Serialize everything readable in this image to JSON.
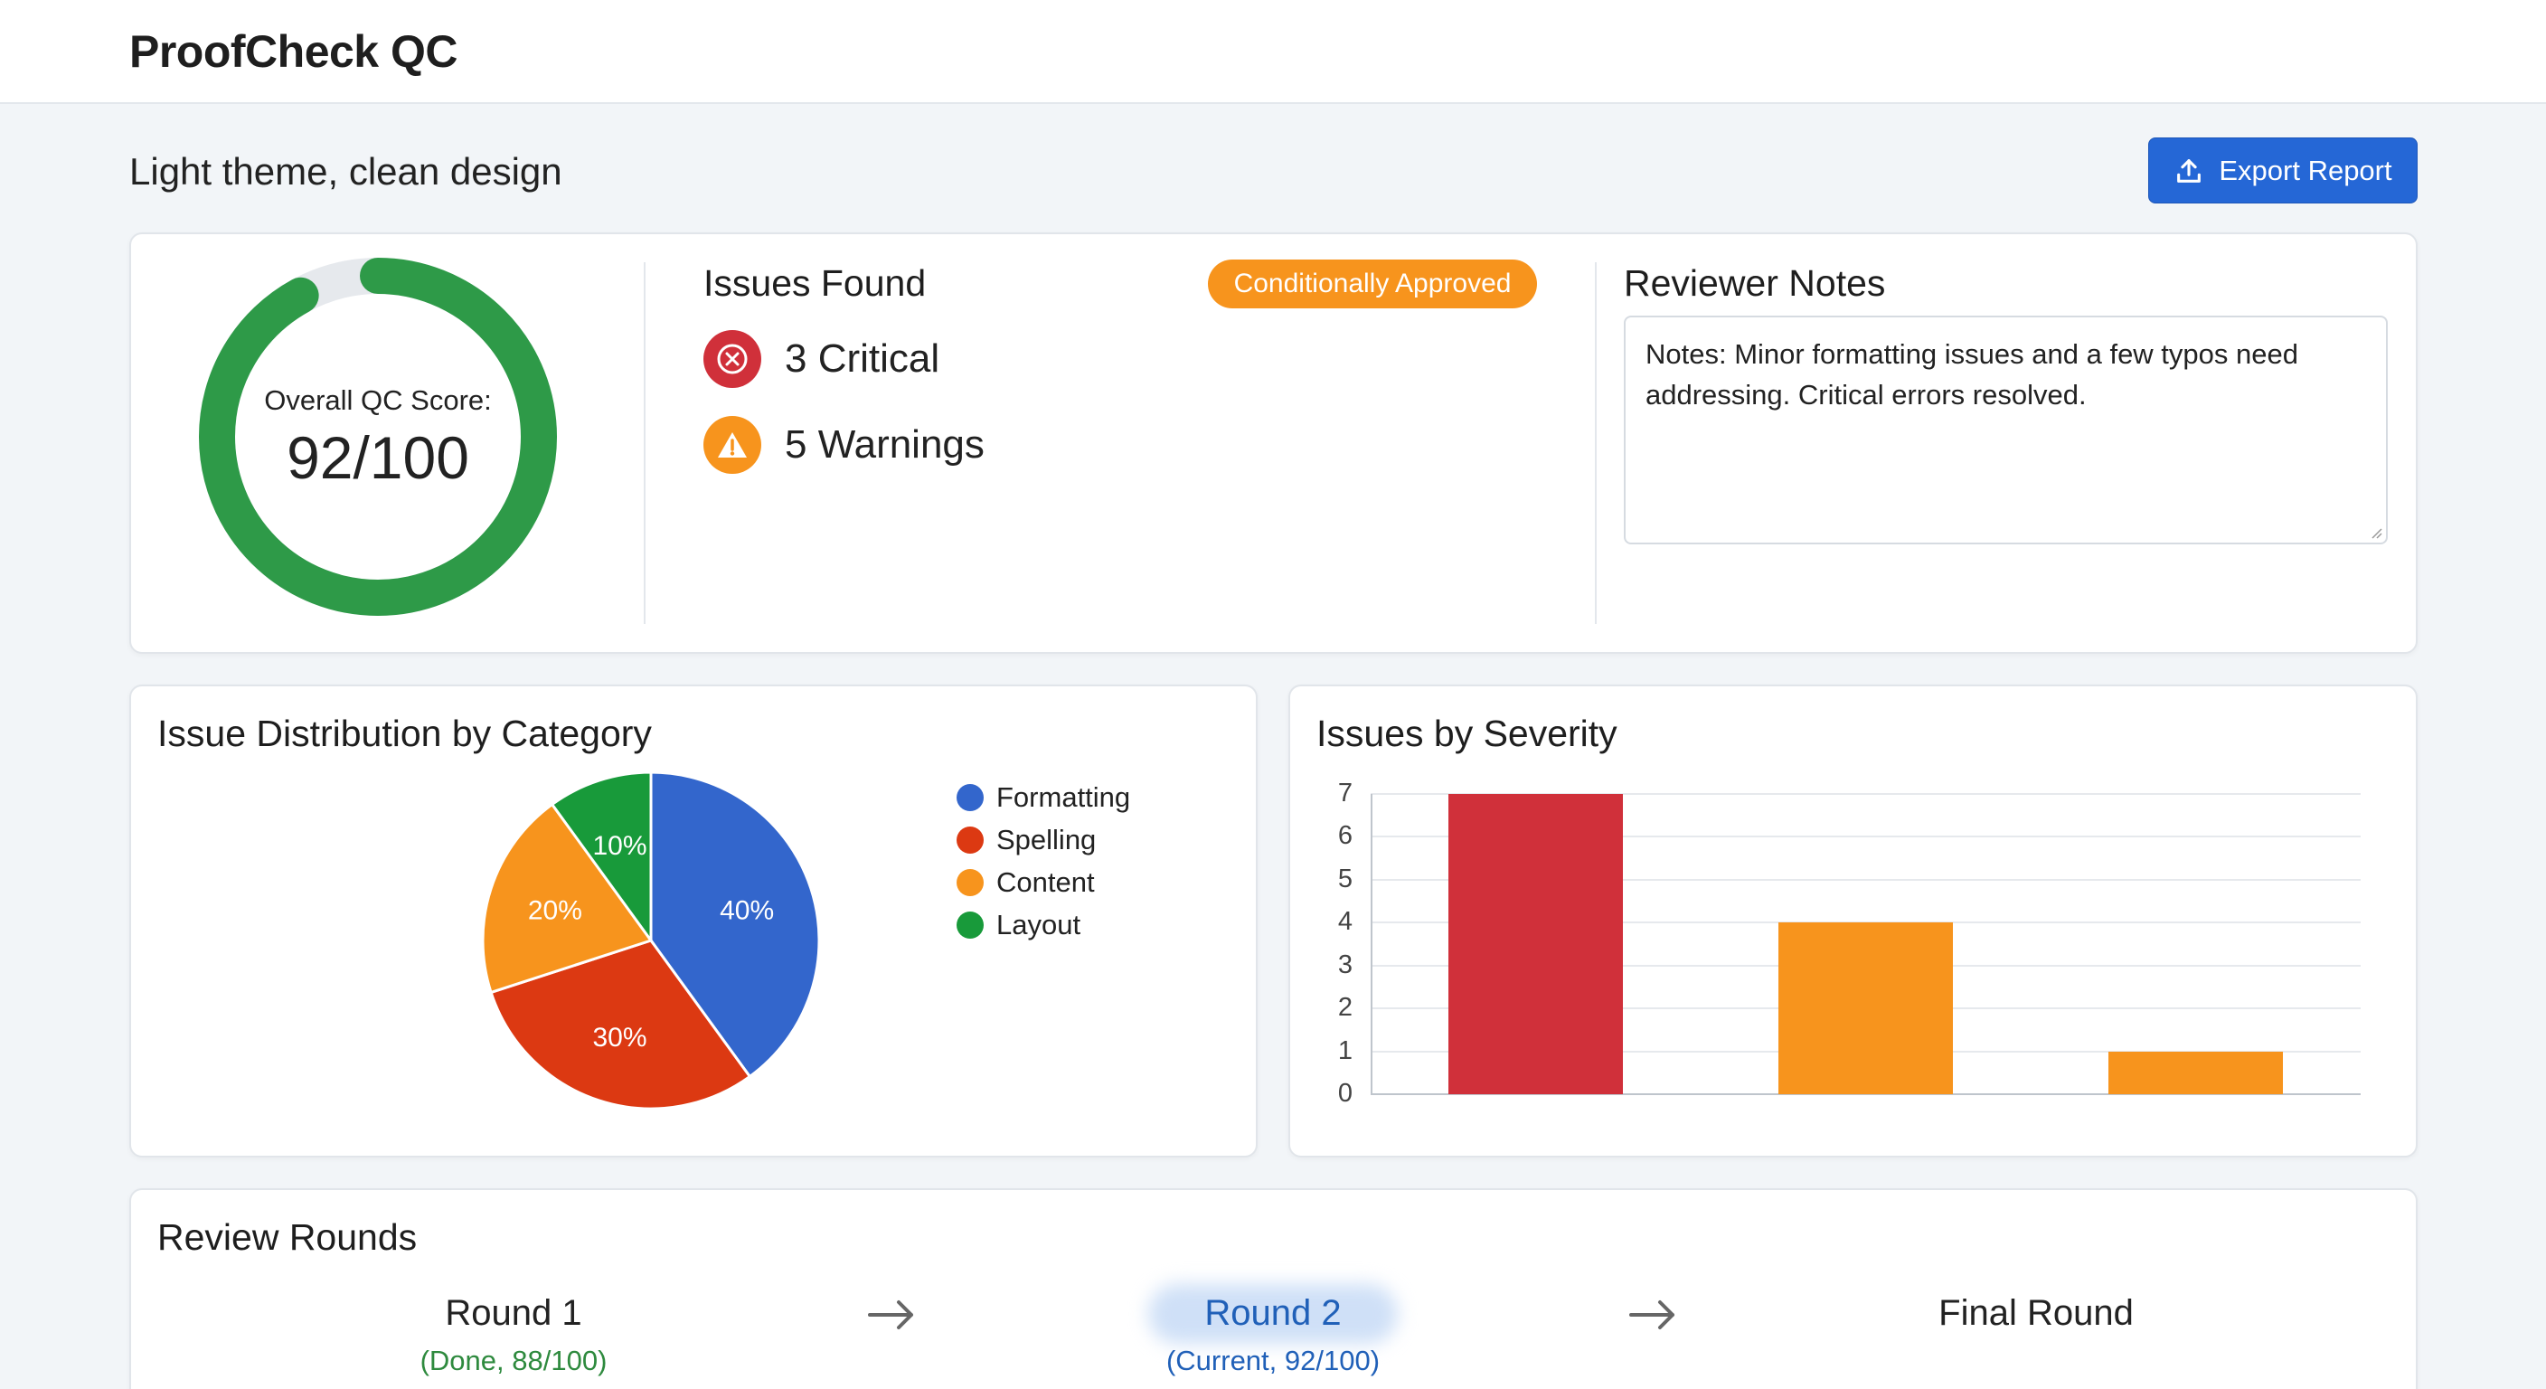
{
  "app": {
    "title": "ProofCheck QC"
  },
  "header": {
    "subtitle": "Light theme, clean design",
    "export_label": "Export Report"
  },
  "score": {
    "label": "Overall QC Score:",
    "value_text": "92/100",
    "value": 92,
    "max": 100
  },
  "issues": {
    "title": "Issues Found",
    "status_badge": "Conditionally Approved",
    "critical_text": "3 Critical",
    "warnings_text": "5 Warnings"
  },
  "notes": {
    "title": "Reviewer Notes",
    "text": "Notes: Minor formatting issues and a few typos need addressing. Critical errors resolved."
  },
  "chart_data": [
    {
      "type": "pie",
      "title": "Issue Distribution by Category",
      "categories": [
        "Formatting",
        "Spelling",
        "Content",
        "Layout"
      ],
      "values": [
        40,
        30,
        20,
        10
      ],
      "labels": [
        "40%",
        "30%",
        "20%",
        "10%"
      ],
      "colors": [
        "#3366cc",
        "#dc3912",
        "#f7941d",
        "#189a3a"
      ],
      "legend": "right"
    },
    {
      "type": "bar",
      "title": "Issues by Severity",
      "values": [
        7,
        4,
        1
      ],
      "colors": [
        "#d0303a",
        "#f7941d",
        "#f7941d"
      ],
      "ylim": [
        0,
        7
      ],
      "yticks": [
        "0",
        "1",
        "2",
        "3",
        "4",
        "5",
        "6",
        "7"
      ],
      "grid": true
    }
  ],
  "rounds": {
    "title": "Review Rounds",
    "items": [
      {
        "name": "Round 1",
        "status": "(Done, 88/100)"
      },
      {
        "name": "Round 2",
        "status": "(Current, 92/100)"
      },
      {
        "name": "Final Round",
        "status": ""
      }
    ]
  },
  "colors": {
    "accent": "#2567d6",
    "success": "#2e9a48",
    "critical": "#d0303a",
    "warning": "#f7941d"
  }
}
